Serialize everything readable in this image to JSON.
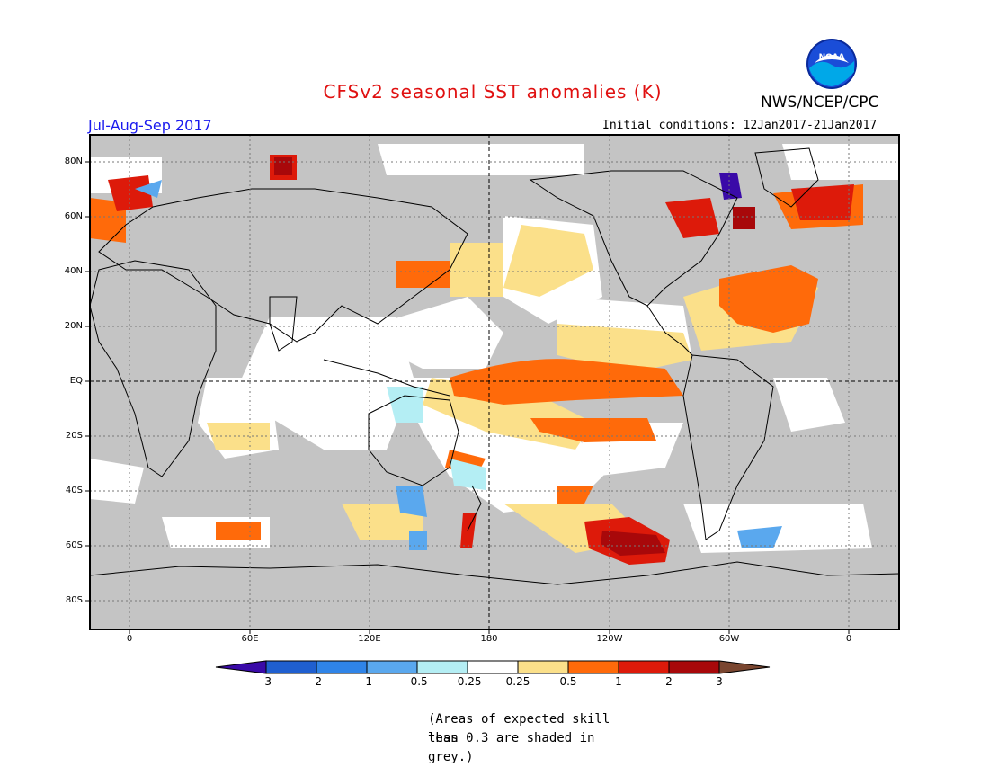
{
  "title": "CFSv2 seasonal SST anomalies (K)",
  "season": "Jul-Aug-Sep 2017",
  "agency": "NWS/NCEP/CPC",
  "initial_conditions": "Initial conditions: 12Jan2017-21Jan2017",
  "logo_text": "NOAA",
  "map": {
    "lat_ticks": [
      "80N",
      "60N",
      "40N",
      "20N",
      "EQ",
      "20S",
      "40S",
      "60S",
      "80S"
    ],
    "lon_ticks": [
      "0",
      "60E",
      "120E",
      "180",
      "120W",
      "60W",
      "0"
    ],
    "grey_meaning": "insufficient skill"
  },
  "colorbar": {
    "labels": [
      "-3",
      "-2",
      "-1",
      "-0.5",
      "-0.25",
      "0.25",
      "0.5",
      "1",
      "2",
      "3"
    ],
    "colors": [
      "#3a0aa8",
      "#1f5fd0",
      "#2f84e8",
      "#5aa8ee",
      "#b4eef4",
      "#ffffff",
      "#fbe08a",
      "#ff6a0a",
      "#dd1a0a",
      "#a8080a",
      "#7a4630"
    ]
  },
  "note": [
    "(Areas of expected skill less",
    "than 0.3 are shaded in grey.)"
  ]
}
